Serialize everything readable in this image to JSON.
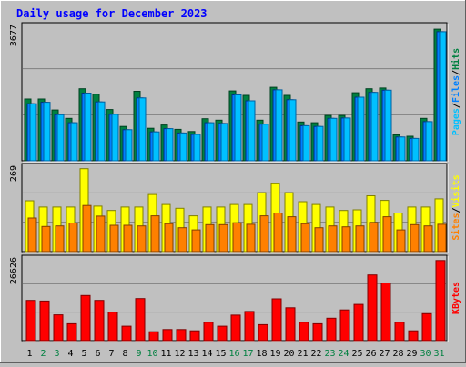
{
  "title": "Daily usage for December 2023",
  "colors": {
    "background": "#C0C0C0",
    "title": "#0000FF",
    "hits": "#008040",
    "files": "#0080FF",
    "pages": "#00C0FF",
    "visits": "#FFFF00",
    "sites": "#FF8000",
    "kbytes": "#FF0000",
    "weekend_day": "#008040",
    "weekday": "#000000"
  },
  "chart_data": [
    {
      "type": "bar",
      "name": "hits-files-pages",
      "axis_max_label": "3677",
      "ylim": [
        0,
        3677
      ],
      "legend": [
        "Pages",
        "Files",
        "Hits"
      ],
      "legend_separator": "/",
      "legend_placement": "right",
      "categories": [
        "1",
        "2",
        "3",
        "4",
        "5",
        "6",
        "7",
        "8",
        "9",
        "10",
        "11",
        "12",
        "13",
        "14",
        "15",
        "16",
        "17",
        "18",
        "19",
        "20",
        "21",
        "22",
        "23",
        "24",
        "25",
        "26",
        "27",
        "28",
        "29",
        "30",
        "31"
      ],
      "series": [
        {
          "name": "Hits",
          "values": [
            1690,
            1690,
            1390,
            1160,
            1970,
            1820,
            1400,
            940,
            1900,
            890,
            980,
            860,
            800,
            1150,
            1110,
            1910,
            1790,
            1110,
            2010,
            1790,
            1060,
            1040,
            1240,
            1240,
            1860,
            1970,
            1990,
            710,
            670,
            1160,
            3600
          ]
        },
        {
          "name": "Files",
          "values": [
            1560,
            1600,
            1260,
            1040,
            1850,
            1610,
            1270,
            850,
            1720,
            790,
            880,
            760,
            720,
            1040,
            1020,
            1800,
            1640,
            1000,
            1940,
            1670,
            960,
            940,
            1160,
            1170,
            1740,
            1870,
            1930,
            650,
            610,
            1070,
            3530
          ]
        },
        {
          "name": "Pages",
          "values": [
            1560,
            1600,
            1260,
            1040,
            1850,
            1610,
            1270,
            850,
            1720,
            790,
            880,
            760,
            720,
            1040,
            1020,
            1800,
            1640,
            1000,
            1940,
            1670,
            960,
            940,
            1160,
            1170,
            1740,
            1870,
            1930,
            650,
            610,
            1070,
            3530
          ]
        }
      ]
    },
    {
      "type": "bar",
      "name": "visits-sites",
      "axis_max_label": "269",
      "ylim": [
        0,
        269
      ],
      "legend": [
        "Sites",
        "Visits"
      ],
      "legend_separator": "/",
      "legend_placement": "right",
      "categories": [
        "1",
        "2",
        "3",
        "4",
        "5",
        "6",
        "7",
        "8",
        "9",
        "10",
        "11",
        "12",
        "13",
        "14",
        "15",
        "16",
        "17",
        "18",
        "19",
        "20",
        "21",
        "22",
        "23",
        "24",
        "25",
        "26",
        "27",
        "28",
        "29",
        "30",
        "31"
      ],
      "series": [
        {
          "name": "Visits",
          "values": [
            162,
            142,
            142,
            142,
            264,
            145,
            131,
            142,
            142,
            182,
            150,
            138,
            114,
            142,
            142,
            150,
            150,
            188,
            216,
            188,
            159,
            150,
            142,
            131,
            133,
            178,
            163,
            123,
            142,
            142,
            168
          ]
        },
        {
          "name": "Sites",
          "values": [
            107,
            80,
            82,
            91,
            147,
            113,
            84,
            84,
            82,
            114,
            89,
            76,
            69,
            86,
            86,
            92,
            87,
            114,
            123,
            111,
            89,
            76,
            82,
            79,
            82,
            93,
            111,
            69,
            86,
            82,
            87
          ]
        }
      ]
    },
    {
      "type": "bar",
      "name": "kbytes",
      "axis_max_label": "26626",
      "ylim": [
        0,
        26626
      ],
      "legend": [
        "KBytes"
      ],
      "legend_placement": "right",
      "categories": [
        "1",
        "2",
        "3",
        "4",
        "5",
        "6",
        "7",
        "8",
        "9",
        "10",
        "11",
        "12",
        "13",
        "14",
        "15",
        "16",
        "17",
        "18",
        "19",
        "20",
        "21",
        "22",
        "23",
        "24",
        "25",
        "26",
        "27",
        "28",
        "29",
        "30",
        "31"
      ],
      "series": [
        {
          "name": "KBytes",
          "values": [
            13100,
            12900,
            8400,
            5500,
            14700,
            13100,
            9300,
            4700,
            13700,
            2900,
            3600,
            3600,
            3200,
            6000,
            4700,
            8300,
            9500,
            5200,
            13600,
            10700,
            6000,
            5500,
            7300,
            10000,
            11800,
            21400,
            18800,
            6000,
            3200,
            8800,
            26100
          ]
        }
      ]
    }
  ],
  "days": [
    {
      "label": "1",
      "weekend": false
    },
    {
      "label": "2",
      "weekend": true
    },
    {
      "label": "3",
      "weekend": true
    },
    {
      "label": "4",
      "weekend": false
    },
    {
      "label": "5",
      "weekend": false
    },
    {
      "label": "6",
      "weekend": false
    },
    {
      "label": "7",
      "weekend": false
    },
    {
      "label": "8",
      "weekend": false
    },
    {
      "label": "9",
      "weekend": true
    },
    {
      "label": "10",
      "weekend": true
    },
    {
      "label": "11",
      "weekend": false
    },
    {
      "label": "12",
      "weekend": false
    },
    {
      "label": "13",
      "weekend": false
    },
    {
      "label": "14",
      "weekend": false
    },
    {
      "label": "15",
      "weekend": false
    },
    {
      "label": "16",
      "weekend": true
    },
    {
      "label": "17",
      "weekend": true
    },
    {
      "label": "18",
      "weekend": false
    },
    {
      "label": "19",
      "weekend": false
    },
    {
      "label": "20",
      "weekend": false
    },
    {
      "label": "21",
      "weekend": false
    },
    {
      "label": "22",
      "weekend": false
    },
    {
      "label": "23",
      "weekend": true
    },
    {
      "label": "24",
      "weekend": true
    },
    {
      "label": "25",
      "weekend": false
    },
    {
      "label": "26",
      "weekend": false
    },
    {
      "label": "27",
      "weekend": false
    },
    {
      "label": "28",
      "weekend": false
    },
    {
      "label": "29",
      "weekend": false
    },
    {
      "label": "30",
      "weekend": true
    },
    {
      "label": "31",
      "weekend": true
    }
  ]
}
